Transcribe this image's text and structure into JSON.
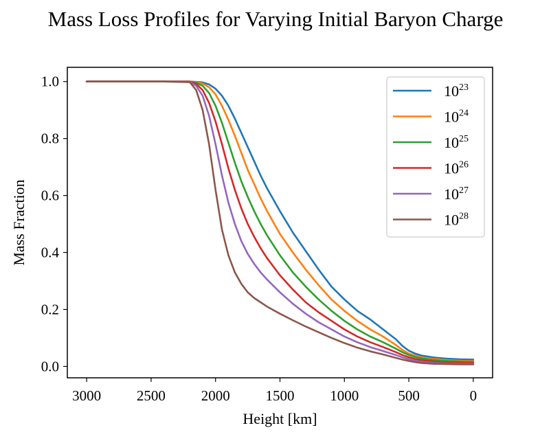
{
  "chart_data": {
    "type": "line",
    "title": "Mass Loss Profiles for Varying Initial Baryon Charge",
    "xlabel": "Height [km]",
    "ylabel": "Mass Fraction",
    "xlim": [
      3150,
      -150
    ],
    "ylim": [
      -0.04,
      1.05
    ],
    "xticks": [
      3000,
      2500,
      2000,
      1500,
      1000,
      500,
      0
    ],
    "xtick_labels": [
      "3000",
      "2500",
      "2000",
      "1500",
      "1000",
      "500",
      "0"
    ],
    "yticks": [
      0.0,
      0.2,
      0.4,
      0.6,
      0.8,
      1.0
    ],
    "ytick_labels": [
      "0.0",
      "0.2",
      "0.4",
      "0.6",
      "0.8",
      "1.0"
    ],
    "grid": false,
    "legend_position": "top-right",
    "x": [
      3000,
      2400,
      2200,
      2150,
      2100,
      2050,
      2000,
      1950,
      1900,
      1850,
      1800,
      1750,
      1700,
      1650,
      1600,
      1500,
      1400,
      1300,
      1200,
      1100,
      1000,
      900,
      800,
      700,
      600,
      550,
      500,
      450,
      400,
      300,
      200,
      100,
      0
    ],
    "series": [
      {
        "name": "10",
        "sup": "23",
        "color": "#1f77b4",
        "values": [
          1.0,
          1.0,
          1.0,
          0.999,
          0.997,
          0.99,
          0.975,
          0.95,
          0.915,
          0.87,
          0.82,
          0.77,
          0.72,
          0.67,
          0.625,
          0.545,
          0.47,
          0.405,
          0.34,
          0.28,
          0.235,
          0.195,
          0.165,
          0.13,
          0.095,
          0.072,
          0.055,
          0.045,
          0.038,
          0.031,
          0.027,
          0.025,
          0.024
        ]
      },
      {
        "name": "10",
        "sup": "24",
        "color": "#ff7f0e",
        "values": [
          1.0,
          1.0,
          1.0,
          0.998,
          0.993,
          0.98,
          0.955,
          0.915,
          0.865,
          0.81,
          0.75,
          0.69,
          0.64,
          0.59,
          0.545,
          0.465,
          0.4,
          0.34,
          0.285,
          0.235,
          0.195,
          0.16,
          0.13,
          0.105,
          0.075,
          0.058,
          0.045,
          0.038,
          0.032,
          0.026,
          0.022,
          0.02,
          0.019
        ]
      },
      {
        "name": "10",
        "sup": "25",
        "color": "#2ca02c",
        "values": [
          1.0,
          1.0,
          1.0,
          0.996,
          0.985,
          0.96,
          0.915,
          0.855,
          0.785,
          0.715,
          0.65,
          0.595,
          0.545,
          0.5,
          0.46,
          0.39,
          0.33,
          0.28,
          0.235,
          0.195,
          0.16,
          0.13,
          0.105,
          0.085,
          0.062,
          0.05,
          0.04,
          0.033,
          0.028,
          0.022,
          0.019,
          0.017,
          0.016
        ]
      },
      {
        "name": "10",
        "sup": "26",
        "color": "#d62728",
        "values": [
          1.0,
          1.0,
          1.0,
          0.992,
          0.97,
          0.925,
          0.86,
          0.78,
          0.695,
          0.62,
          0.555,
          0.5,
          0.455,
          0.415,
          0.38,
          0.32,
          0.27,
          0.225,
          0.19,
          0.16,
          0.13,
          0.105,
          0.085,
          0.068,
          0.05,
          0.04,
          0.032,
          0.026,
          0.022,
          0.017,
          0.014,
          0.013,
          0.012
        ]
      },
      {
        "name": "10",
        "sup": "27",
        "color": "#9467bd",
        "values": [
          1.0,
          1.0,
          0.999,
          0.985,
          0.95,
          0.88,
          0.78,
          0.67,
          0.575,
          0.5,
          0.44,
          0.395,
          0.36,
          0.33,
          0.305,
          0.26,
          0.22,
          0.185,
          0.155,
          0.13,
          0.105,
          0.085,
          0.068,
          0.054,
          0.04,
          0.032,
          0.025,
          0.02,
          0.016,
          0.012,
          0.01,
          0.009,
          0.009
        ]
      },
      {
        "name": "10",
        "sup": "28",
        "color": "#8c564b",
        "values": [
          1.0,
          1.0,
          0.998,
          0.97,
          0.9,
          0.78,
          0.62,
          0.48,
          0.39,
          0.33,
          0.29,
          0.26,
          0.24,
          0.225,
          0.21,
          0.185,
          0.162,
          0.14,
          0.12,
          0.1,
          0.082,
          0.066,
          0.053,
          0.042,
          0.03,
          0.024,
          0.019,
          0.015,
          0.012,
          0.009,
          0.008,
          0.007,
          0.007
        ]
      }
    ]
  }
}
